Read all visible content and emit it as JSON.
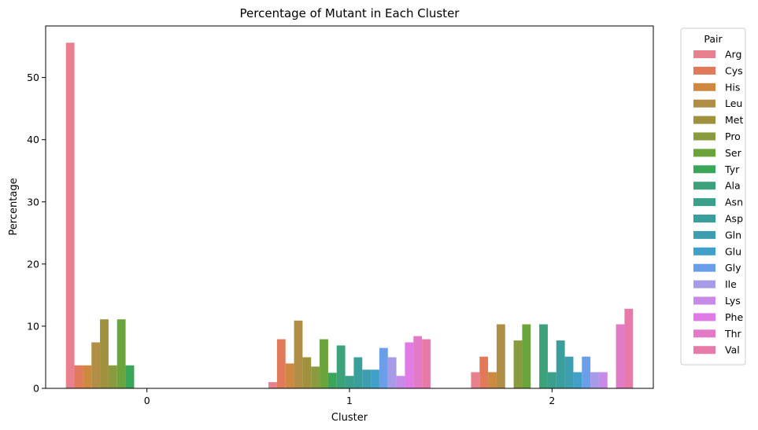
{
  "chart_data": {
    "type": "bar",
    "title": "Percentage of Mutant in Each Cluster",
    "xlabel": "Cluster",
    "ylabel": "Percentage",
    "categories": [
      "0",
      "1",
      "2"
    ],
    "ylim": [
      0,
      58.3
    ],
    "yticks": [
      0,
      10,
      20,
      30,
      40,
      50
    ],
    "legend": {
      "title": "Pair",
      "placement": "outside-right"
    },
    "series": [
      {
        "name": "Arg",
        "color": "#e8808e",
        "values": [
          55.6,
          1.0,
          2.6
        ]
      },
      {
        "name": "Cys",
        "color": "#e07a5b",
        "values": [
          3.7,
          7.9,
          5.1
        ]
      },
      {
        "name": "His",
        "color": "#cf8840",
        "values": [
          3.7,
          4.0,
          2.6
        ]
      },
      {
        "name": "Leu",
        "color": "#b08e46",
        "values": [
          7.4,
          10.9,
          10.3
        ]
      },
      {
        "name": "Met",
        "color": "#a0913e",
        "values": [
          11.1,
          5.0,
          0
        ]
      },
      {
        "name": "Pro",
        "color": "#8a9a3e",
        "values": [
          3.7,
          3.5,
          7.7
        ]
      },
      {
        "name": "Ser",
        "color": "#6aa43b",
        "values": [
          11.1,
          7.9,
          10.3
        ]
      },
      {
        "name": "Tyr",
        "color": "#3ba65a",
        "values": [
          3.7,
          2.5,
          0
        ]
      },
      {
        "name": "Ala",
        "color": "#3ba27a",
        "values": [
          0,
          6.9,
          10.3
        ]
      },
      {
        "name": "Asn",
        "color": "#3aa08c",
        "values": [
          0,
          2.0,
          2.6
        ]
      },
      {
        "name": "Asp",
        "color": "#3a9f9c",
        "values": [
          0,
          5.0,
          7.7
        ]
      },
      {
        "name": "Gln",
        "color": "#3c9eae",
        "values": [
          0,
          3.0,
          5.1
        ]
      },
      {
        "name": "Glu",
        "color": "#41a0c8",
        "values": [
          0,
          3.0,
          2.6
        ]
      },
      {
        "name": "Gly",
        "color": "#6a9ee8",
        "values": [
          0,
          6.5,
          5.1
        ]
      },
      {
        "name": "Ile",
        "color": "#a79be8",
        "values": [
          0,
          5.0,
          2.6
        ]
      },
      {
        "name": "Lys",
        "color": "#c78ae8",
        "values": [
          0,
          2.0,
          2.6
        ]
      },
      {
        "name": "Phe",
        "color": "#e07ae4",
        "values": [
          0,
          7.4,
          0
        ]
      },
      {
        "name": "Thr",
        "color": "#e27ac8",
        "values": [
          0,
          8.4,
          10.3
        ]
      },
      {
        "name": "Val",
        "color": "#e87aaa",
        "values": [
          0,
          7.9,
          12.8
        ]
      }
    ]
  }
}
